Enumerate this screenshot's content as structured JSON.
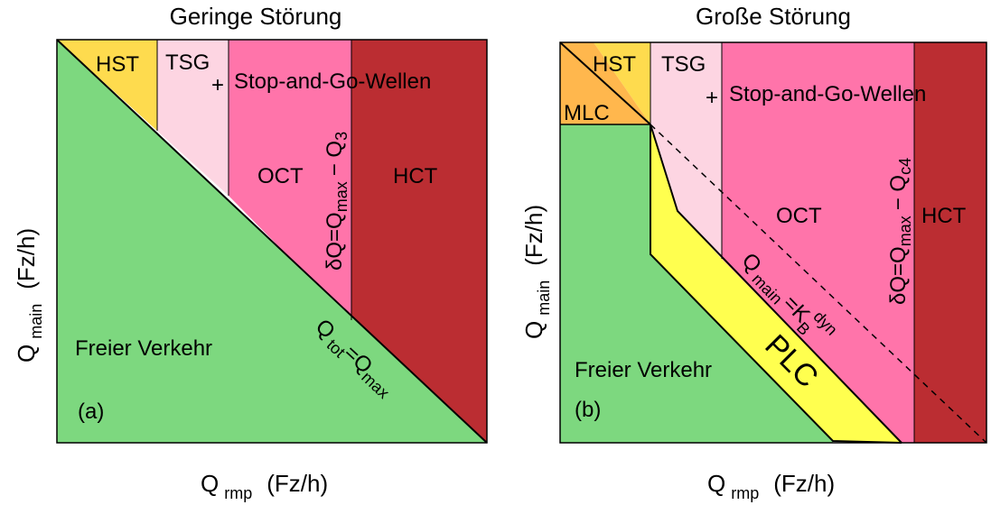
{
  "colors": {
    "free": "#7dd87f",
    "hst": "#fedb4e",
    "tsg": "#fdd5e2",
    "oct": "#ff74aa",
    "hct": "#bb2d32",
    "mlc": "#ffb74d",
    "plc": "#ffff4f",
    "line": "#000000"
  },
  "panel_a": {
    "title": "Geringe Störung",
    "label": "(a)",
    "regions": {
      "hst": "HST",
      "tsg": "TSG",
      "oct": "OCT",
      "hct": "HCT",
      "free": "Freier Verkehr"
    },
    "annotation": {
      "plus": "+",
      "text": "Stop-and-Go-Wellen"
    },
    "boundary_delta": {
      "delta": "δ",
      "q1": "Q",
      "eq": "=Q",
      "sub_max": "max",
      "minus": "− Q",
      "sub_3": "3"
    },
    "boundary_tot": {
      "q1": "Q",
      "sub_tot": "tot",
      "eq": "=Q",
      "sub_max": "max"
    },
    "x_axis": {
      "q": "Q",
      "sub": "rmp",
      "unit": "(Fz/h)"
    },
    "y_axis": {
      "q": "Q",
      "sub": "main",
      "unit": "(Fz/h)"
    }
  },
  "panel_b": {
    "title": "Große Störung",
    "label": "(b)",
    "regions": {
      "hst": "HST",
      "tsg": "TSG",
      "oct": "OCT",
      "hct": "HCT",
      "mlc": "MLC",
      "plc": "PLC",
      "free": "Freier Verkehr"
    },
    "annotation": {
      "plus": "+",
      "text": "Stop-and-Go-Wellen"
    },
    "boundary_delta": {
      "delta": "δ",
      "q1": "Q",
      "eq": "=Q",
      "sub_max": "max",
      "minus": "− Q",
      "sub_c4": "c4"
    },
    "boundary_kb": {
      "q1": "Q",
      "sub_main": "main",
      "eq": "=K",
      "sub_b": "B",
      "sup_dyn": "dyn"
    },
    "x_axis": {
      "q": "Q",
      "sub": "rmp",
      "unit": "(Fz/h)"
    },
    "y_axis": {
      "q": "Q",
      "sub": "main",
      "unit": "(Fz/h)"
    }
  }
}
